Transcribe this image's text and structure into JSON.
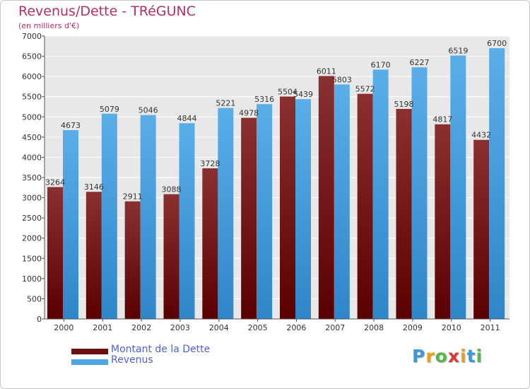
{
  "chart_data": {
    "type": "bar",
    "title": "Revenus/Dette - TRéGUNC",
    "subtitle": "(en milliers d'€)",
    "categories": [
      "2000",
      "2001",
      "2002",
      "2003",
      "2004",
      "2005",
      "2006",
      "2007",
      "2008",
      "2009",
      "2010",
      "2011"
    ],
    "series": [
      {
        "name": "Montant de la Dette",
        "color": "#7a1616",
        "values": [
          3264,
          3146,
          2911,
          3088,
          3728,
          4978,
          5504,
          6011,
          5572,
          5198,
          4817,
          4432
        ]
      },
      {
        "name": "Revenus",
        "color": "#4ea6e6",
        "values": [
          4673,
          5079,
          5046,
          4844,
          5221,
          5316,
          5439,
          5803,
          6170,
          6227,
          6519,
          6700
        ]
      }
    ],
    "ylim": [
      0,
      7000
    ],
    "yticks": [
      0,
      500,
      1000,
      1500,
      2000,
      2500,
      3000,
      3500,
      4000,
      4500,
      5000,
      5500,
      6000,
      6500,
      7000
    ],
    "grid": true,
    "legend_position": "bottom-left"
  },
  "branding": {
    "logo_text": "Proxiti",
    "logo_letters": [
      "P",
      "r",
      "o",
      "x",
      "i",
      "t",
      "i"
    ],
    "logo_colors": [
      "#3a9ad9",
      "#e8a020",
      "#56b84a",
      "#d23a3a",
      "#e8a020",
      "#3a9ad9",
      "#56b84a"
    ]
  }
}
